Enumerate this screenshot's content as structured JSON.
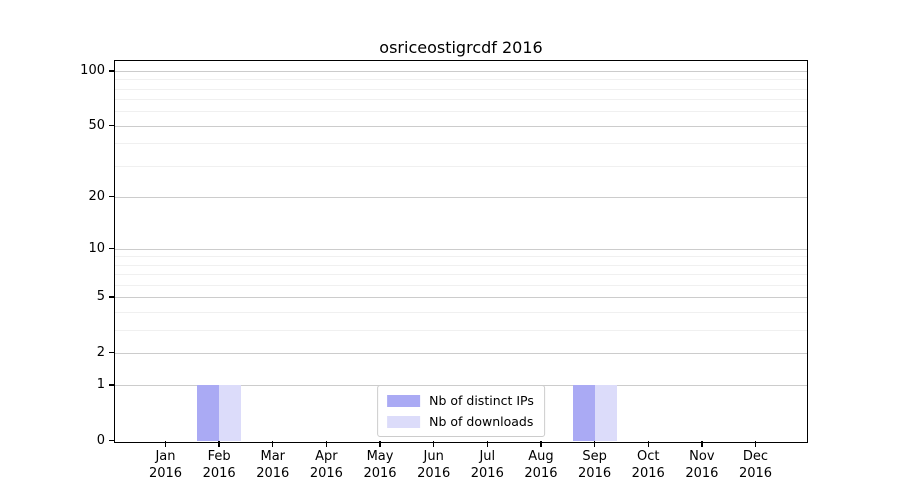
{
  "chart_data": {
    "type": "bar",
    "title": "osriceostigrcdf 2016",
    "categories": [
      "Jan 2016",
      "Feb 2016",
      "Mar 2016",
      "Apr 2016",
      "May 2016",
      "Jun 2016",
      "Jul 2016",
      "Aug 2016",
      "Sep 2016",
      "Oct 2016",
      "Nov 2016",
      "Dec 2016"
    ],
    "series": [
      {
        "name": "Nb of distinct IPs",
        "color": "#aaaaf4",
        "values": [
          0,
          1,
          0,
          0,
          0,
          0,
          0,
          0,
          1,
          0,
          0,
          0
        ]
      },
      {
        "name": "Nb of downloads",
        "color": "#dcdcfa",
        "values": [
          0,
          1,
          0,
          0,
          0,
          0,
          0,
          0,
          1,
          0,
          0,
          0
        ]
      }
    ],
    "xlabel": "",
    "ylabel": "",
    "yscale": "log1p",
    "ylim": [
      0,
      115
    ],
    "yticks": [
      0,
      1,
      2,
      5,
      10,
      20,
      50,
      100
    ],
    "yminorticks": [
      3,
      4,
      6,
      7,
      8,
      9,
      30,
      40,
      60,
      70,
      80,
      90
    ],
    "grid": true,
    "legend_position": "lower center",
    "colors": {
      "grid_major": "#cccccc",
      "grid_minor": "#f0f0f0",
      "axis": "#000000",
      "text": "#000000",
      "background": "#ffffff"
    }
  }
}
